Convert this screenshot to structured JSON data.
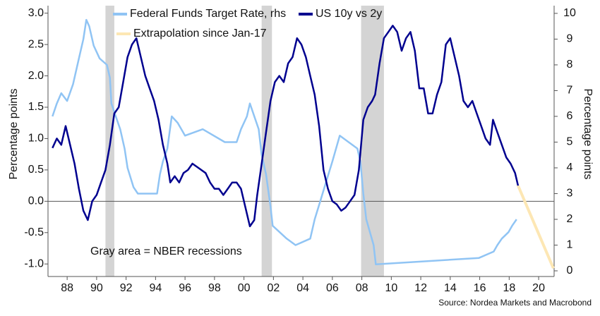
{
  "chart_data": {
    "type": "line",
    "xlim": [
      1986.7,
      2021.05
    ],
    "xticks": [
      {
        "value": 1988,
        "label": "88"
      },
      {
        "value": 1990,
        "label": "90"
      },
      {
        "value": 1992,
        "label": "92"
      },
      {
        "value": 1994,
        "label": "94"
      },
      {
        "value": 1996,
        "label": "96"
      },
      {
        "value": 1998,
        "label": "98"
      },
      {
        "value": 2000,
        "label": "00"
      },
      {
        "value": 2002,
        "label": "02"
      },
      {
        "value": 2004,
        "label": "04"
      },
      {
        "value": 2006,
        "label": "06"
      },
      {
        "value": 2008,
        "label": "08"
      },
      {
        "value": 2010,
        "label": "10"
      },
      {
        "value": 2012,
        "label": "12"
      },
      {
        "value": 2014,
        "label": "14"
      },
      {
        "value": 2016,
        "label": "16"
      },
      {
        "value": 2018,
        "label": "18"
      },
      {
        "value": 2020,
        "label": "20"
      }
    ],
    "ylim": [
      -1.2,
      3.12
    ],
    "yticks": [
      {
        "value": -1,
        "label": "-1.0"
      },
      {
        "value": -0.5,
        "label": "-0.5"
      },
      {
        "value": 0,
        "label": "0.0"
      },
      {
        "value": 0.5,
        "label": "0.5"
      },
      {
        "value": 1,
        "label": "1.0"
      },
      {
        "value": 1.5,
        "label": "1.5"
      },
      {
        "value": 2,
        "label": "2.0"
      },
      {
        "value": 2.5,
        "label": "2.5"
      },
      {
        "value": 3,
        "label": "3.0"
      }
    ],
    "y2lim": [
      -0.22,
      10.3
    ],
    "y2ticks": [
      0,
      1,
      2,
      3,
      4,
      5,
      6,
      7,
      8,
      9,
      10
    ],
    "ylabel": "Percentage points",
    "y2label": "Percentage points",
    "hline": 0,
    "shaded_ranges": [
      [
        1990.6,
        1991.2
      ],
      [
        2001.2,
        2001.9
      ],
      [
        2007.95,
        2009.5
      ]
    ],
    "annotation": "Gray area = NBER recessions",
    "source": "Source: Nordea Markets and Macrobond",
    "series": [
      {
        "name": "Federal Funds Target Rate, rhs",
        "color": "#90c4f4",
        "axis": "y2",
        "x": [
          1987.0,
          1987.3,
          1987.6,
          1988.0,
          1988.4,
          1988.8,
          1989.1,
          1989.3,
          1989.5,
          1989.8,
          1990.2,
          1990.7,
          1990.9,
          1991.0,
          1991.3,
          1991.6,
          1991.9,
          1992.1,
          1992.5,
          1992.8,
          1994.1,
          1994.3,
          1994.5,
          1994.8,
          1995.1,
          1995.5,
          1996.0,
          1997.2,
          1998.7,
          1999.5,
          1999.8,
          2000.2,
          2000.4,
          2001.0,
          2001.2,
          2001.5,
          2001.8,
          2001.95,
          2002.9,
          2003.5,
          2004.5,
          2004.8,
          2005.2,
          2005.6,
          2006.0,
          2006.5,
          2007.7,
          2007.9,
          2008.1,
          2008.3,
          2008.8,
          2008.95,
          2015.95,
          2016.95,
          2017.2,
          2017.5,
          2017.95,
          2018.2,
          2018.5
        ],
        "values": [
          6.0,
          6.5,
          6.9,
          6.6,
          7.25,
          8.25,
          9.0,
          9.75,
          9.5,
          8.75,
          8.25,
          8.0,
          7.5,
          6.5,
          6.0,
          5.5,
          4.75,
          4.0,
          3.25,
          3.0,
          3.0,
          3.75,
          4.25,
          4.75,
          6.0,
          5.75,
          5.25,
          5.5,
          5.0,
          5.0,
          5.5,
          6.0,
          6.5,
          5.5,
          4.5,
          3.75,
          2.5,
          1.75,
          1.25,
          1.0,
          1.25,
          2.0,
          2.75,
          3.5,
          4.25,
          5.25,
          4.75,
          4.25,
          3.0,
          2.0,
          1.0,
          0.25,
          0.5,
          0.75,
          1.0,
          1.25,
          1.5,
          1.75,
          2.0
        ]
      },
      {
        "name": "US 10y vs 2y",
        "color": "#00008f",
        "x": [
          1987.0,
          1987.3,
          1987.6,
          1987.9,
          1988.2,
          1988.5,
          1988.8,
          1989.1,
          1989.4,
          1989.7,
          1990.0,
          1990.3,
          1990.6,
          1990.9,
          1991.2,
          1991.5,
          1991.8,
          1992.1,
          1992.4,
          1992.7,
          1993.0,
          1993.3,
          1993.6,
          1993.9,
          1994.2,
          1994.5,
          1994.8,
          1995.0,
          1995.3,
          1995.6,
          1995.9,
          1996.2,
          1996.5,
          1996.8,
          1997.1,
          1997.4,
          1997.7,
          1998.0,
          1998.3,
          1998.6,
          1998.9,
          1999.2,
          1999.5,
          1999.8,
          2000.1,
          2000.4,
          2000.7,
          2000.9,
          2001.2,
          2001.5,
          2001.8,
          2002.1,
          2002.4,
          2002.7,
          2003.0,
          2003.3,
          2003.6,
          2003.9,
          2004.2,
          2004.5,
          2004.8,
          2005.1,
          2005.4,
          2005.7,
          2006.0,
          2006.3,
          2006.6,
          2006.9,
          2007.2,
          2007.5,
          2007.8,
          2008.1,
          2008.4,
          2008.7,
          2008.9,
          2009.2,
          2009.5,
          2009.8,
          2010.1,
          2010.4,
          2010.7,
          2011.0,
          2011.3,
          2011.6,
          2011.9,
          2012.2,
          2012.5,
          2012.8,
          2013.1,
          2013.4,
          2013.7,
          2014.0,
          2014.3,
          2014.6,
          2014.9,
          2015.2,
          2015.5,
          2015.8,
          2016.1,
          2016.4,
          2016.7,
          2016.9,
          2017.2,
          2017.5,
          2017.8,
          2018.1,
          2018.4,
          2018.6
        ],
        "values": [
          0.85,
          1.0,
          0.9,
          1.2,
          0.9,
          0.6,
          0.2,
          -0.15,
          -0.3,
          0.0,
          0.1,
          0.3,
          0.5,
          0.9,
          1.4,
          1.5,
          1.9,
          2.3,
          2.5,
          2.6,
          2.3,
          2.0,
          1.8,
          1.6,
          1.3,
          0.9,
          0.6,
          0.3,
          0.4,
          0.3,
          0.45,
          0.5,
          0.6,
          0.55,
          0.5,
          0.45,
          0.3,
          0.2,
          0.2,
          0.1,
          0.2,
          0.3,
          0.3,
          0.2,
          -0.1,
          -0.4,
          -0.3,
          0.1,
          0.6,
          1.1,
          1.6,
          1.9,
          2.0,
          1.9,
          2.2,
          2.3,
          2.6,
          2.5,
          2.3,
          2.0,
          1.7,
          1.2,
          0.5,
          0.2,
          0.0,
          -0.05,
          -0.15,
          -0.1,
          0.0,
          0.1,
          0.5,
          1.3,
          1.5,
          1.6,
          1.7,
          2.2,
          2.6,
          2.7,
          2.8,
          2.7,
          2.4,
          2.6,
          2.7,
          2.4,
          1.8,
          1.8,
          1.4,
          1.4,
          1.7,
          1.9,
          2.5,
          2.6,
          2.3,
          2.0,
          1.6,
          1.5,
          1.6,
          1.4,
          1.2,
          1.0,
          0.9,
          1.3,
          1.1,
          0.9,
          0.7,
          0.6,
          0.45,
          0.25
        ]
      },
      {
        "name": "Extrapolation since Jan-17",
        "color": "#fde7b4",
        "x": [
          2018.6,
          2021.0
        ],
        "values": [
          0.25,
          -1.07
        ]
      }
    ]
  }
}
